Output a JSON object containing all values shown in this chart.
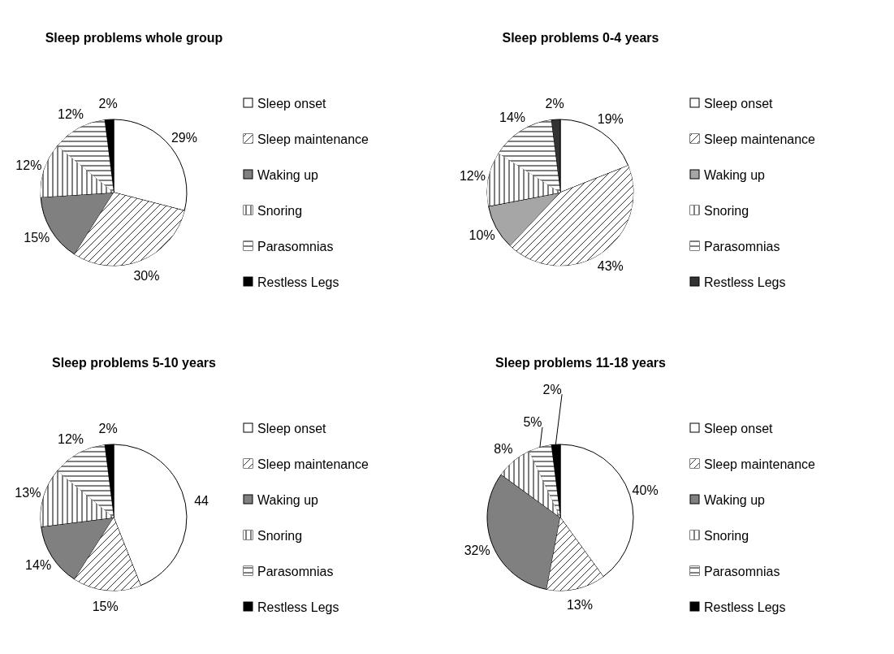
{
  "chart_data": [
    {
      "type": "pie",
      "title": "Sleep problems whole group",
      "legend": "right",
      "categories": [
        "Sleep onset",
        "Sleep maintenance",
        "Waking up",
        "Snoring",
        "Parasomnias",
        "Restless Legs"
      ],
      "values": [
        29,
        30,
        15,
        12,
        12,
        2
      ],
      "value_labels": [
        "29%",
        "30%",
        "15%",
        "12%",
        "12%",
        "2%"
      ],
      "colors": [
        "#ffffff",
        "#ffffff",
        "#808080",
        "#ffffff",
        "#ffffff",
        "#000000"
      ]
    },
    {
      "type": "pie",
      "title": "Sleep problems 0-4 years",
      "legend": "right",
      "categories": [
        "Sleep onset",
        "Sleep maintenance",
        "Waking up",
        "Snoring",
        "Parasomnias",
        "Restless Legs"
      ],
      "values": [
        19,
        43,
        10,
        12,
        14,
        2
      ],
      "value_labels": [
        "19%",
        "43%",
        "10%",
        "12%",
        "14%",
        "2%"
      ],
      "colors": [
        "#ffffff",
        "#ffffff",
        "#a6a6a6",
        "#ffffff",
        "#ffffff",
        "#333333"
      ]
    },
    {
      "type": "pie",
      "title": "Sleep problems 5-10 years",
      "legend": "right",
      "categories": [
        "Sleep onset",
        "Sleep maintenance",
        "Waking up",
        "Snoring",
        "Parasomnias",
        "Restless Legs"
      ],
      "values": [
        44,
        15,
        14,
        13,
        12,
        2
      ],
      "value_labels": [
        "44",
        "15%",
        "14%",
        "13%",
        "12%",
        "2%"
      ],
      "colors": [
        "#ffffff",
        "#ffffff",
        "#808080",
        "#ffffff",
        "#ffffff",
        "#000000"
      ]
    },
    {
      "type": "pie",
      "title": "Sleep problems 11-18 years",
      "legend": "right",
      "categories": [
        "Sleep onset",
        "Sleep maintenance",
        "Waking up",
        "Snoring",
        "Parasomnias",
        "Restless Legs"
      ],
      "values": [
        40,
        13,
        32,
        8,
        5,
        2
      ],
      "value_labels": [
        "40%",
        "13%",
        "32%",
        "8%",
        "5%",
        "2%"
      ],
      "colors": [
        "#ffffff",
        "#ffffff",
        "#808080",
        "#ffffff",
        "#ffffff",
        "#000000"
      ]
    }
  ]
}
